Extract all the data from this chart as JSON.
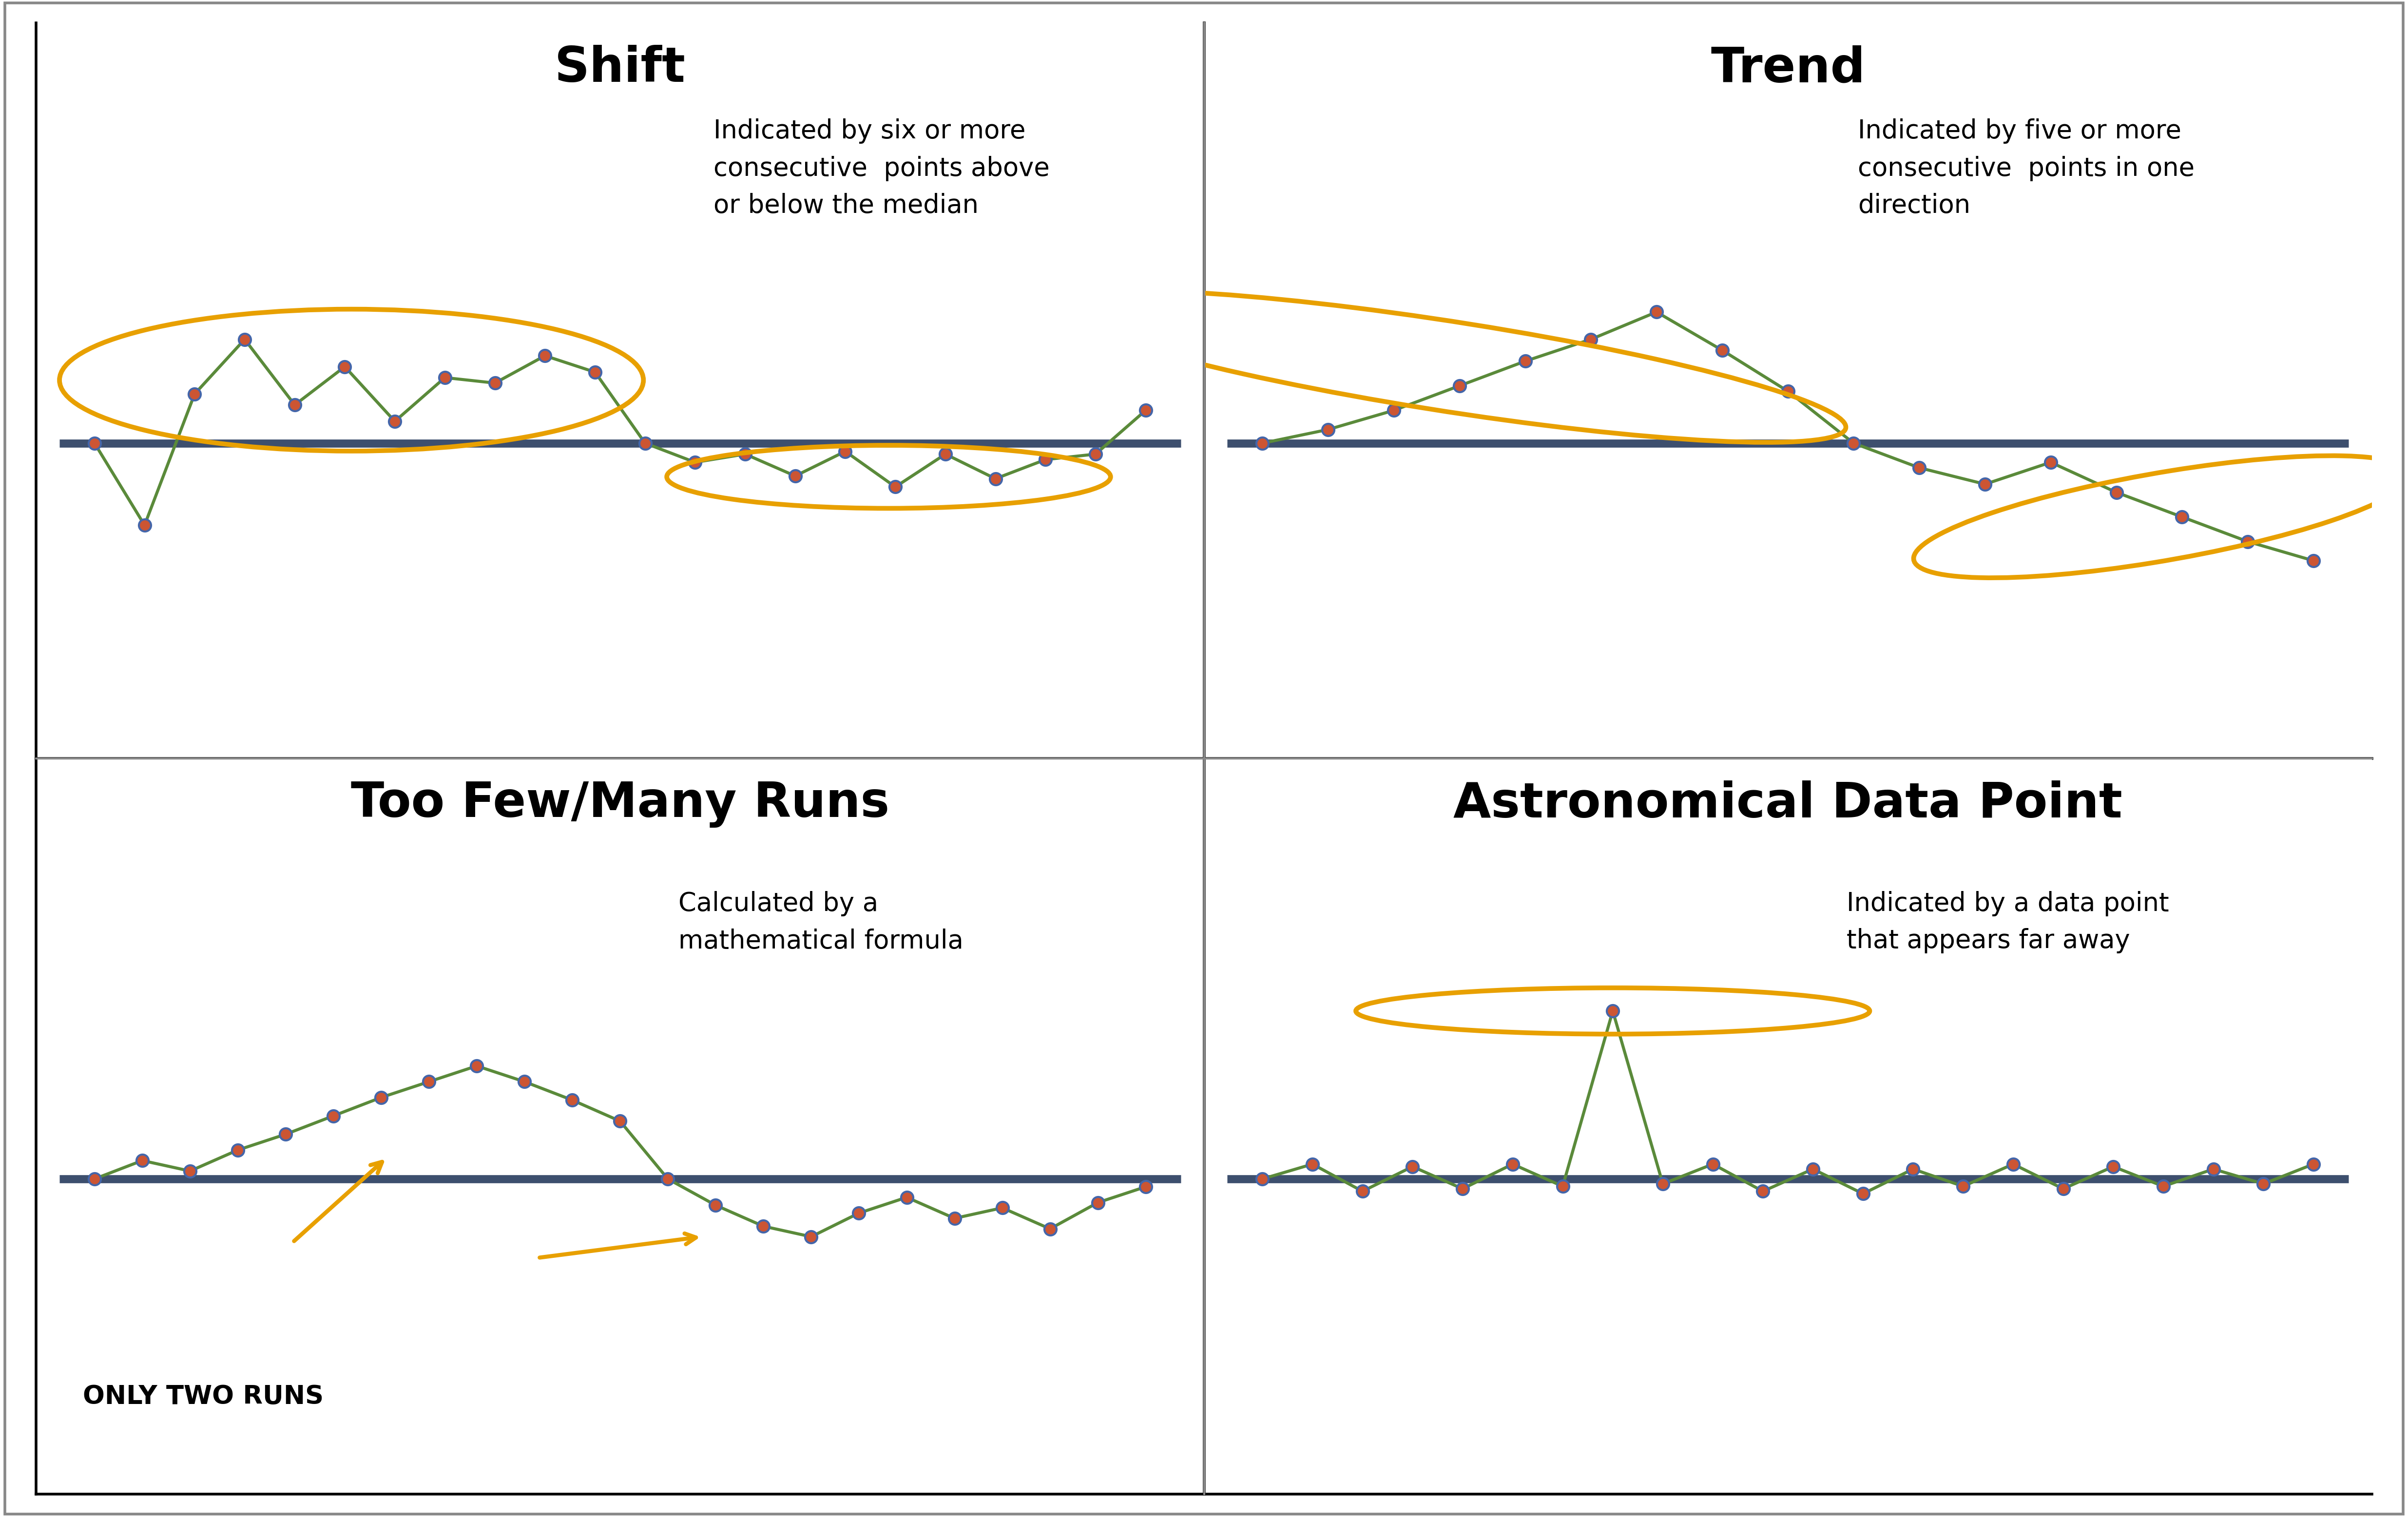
{
  "title_shift": "Shift",
  "title_trend": "Trend",
  "title_runs": "Too Few/Many Runs",
  "title_astro": "Astronomical Data Point",
  "annotation_shift": "Indicated by six or more\nconsecutive  points above\nor below the median",
  "annotation_trend": "Indicated by five or more\nconsecutive  points in one\ndirection",
  "annotation_runs": "Calculated by a\nmathematical formula",
  "annotation_astro": "Indicated by a data point\nthat appears far away",
  "annotation_runs_label": "ONLY TWO RUNS",
  "line_color": "#5a8a3a",
  "median_color": "#3d4f6e",
  "dot_color": "#cc5533",
  "dot_edge_color": "#4466aa",
  "ellipse_color": "#e8a000",
  "bg_color": "#ffffff",
  "border_color": "#888888",
  "title_fontsize": 72,
  "annotation_fontsize": 38,
  "runs_label_fontsize": 38,
  "arrow_color": "#e8a000",
  "shift_data": [
    0.0,
    -1.5,
    0.9,
    1.9,
    0.7,
    1.4,
    0.4,
    1.2,
    1.1,
    1.6,
    1.3,
    0.0,
    -0.35,
    -0.2,
    -0.6,
    -0.15,
    -0.8,
    -0.2,
    -0.65,
    -0.3,
    -0.2,
    0.6
  ],
  "trend_data": [
    0.0,
    0.25,
    0.6,
    1.05,
    1.5,
    1.9,
    2.4,
    1.7,
    0.95,
    0.0,
    -0.45,
    -0.75,
    -0.35,
    -0.9,
    -1.35,
    -1.8,
    -2.15
  ],
  "runs_data": [
    0.0,
    0.35,
    0.15,
    0.55,
    0.85,
    1.2,
    1.55,
    1.85,
    2.15,
    1.85,
    1.5,
    1.1,
    0.0,
    -0.5,
    -0.9,
    -1.1,
    -0.65,
    -0.35,
    -0.75,
    -0.55,
    -0.95,
    -0.45,
    -0.15
  ],
  "astro_data": [
    0.0,
    0.3,
    -0.25,
    0.25,
    -0.2,
    0.3,
    -0.15,
    3.4,
    -0.1,
    0.3,
    -0.25,
    0.2,
    -0.3,
    0.2,
    -0.15,
    0.3,
    -0.2,
    0.25,
    -0.15,
    0.2,
    -0.1,
    0.3
  ]
}
